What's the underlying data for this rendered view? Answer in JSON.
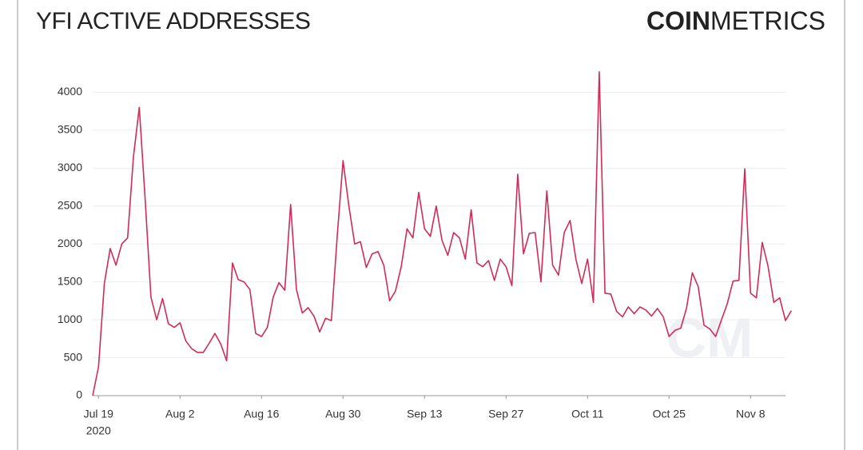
{
  "chart_data": {
    "type": "line",
    "title": "YFI ACTIVE ADDRESSES",
    "brand": [
      "COIN",
      "METRICS"
    ],
    "watermark": "CM",
    "x_start": "2020-07-18",
    "values": [
      0,
      380,
      1480,
      1940,
      1720,
      2000,
      2080,
      3150,
      3800,
      2600,
      1300,
      1000,
      1280,
      950,
      900,
      960,
      720,
      620,
      570,
      570,
      690,
      820,
      680,
      460,
      1750,
      1530,
      1500,
      1400,
      820,
      780,
      900,
      1300,
      1490,
      1390,
      2520,
      1400,
      1090,
      1160,
      1050,
      840,
      1020,
      990,
      2100,
      3100,
      2500,
      2000,
      2030,
      1690,
      1870,
      1900,
      1720,
      1250,
      1380,
      1700,
      2200,
      2080,
      2680,
      2200,
      2100,
      2500,
      2050,
      1850,
      2150,
      2080,
      1800,
      2450,
      1750,
      1700,
      1780,
      1520,
      1800,
      1700,
      1450,
      2920,
      1870,
      2140,
      2150,
      1500,
      2700,
      1720,
      1590,
      2150,
      2310,
      1800,
      1480,
      1800,
      1230,
      4270,
      1350,
      1340,
      1110,
      1040,
      1170,
      1080,
      1170,
      1130,
      1050,
      1150,
      1040,
      780,
      860,
      890,
      1150,
      1620,
      1440,
      930,
      880,
      780,
      1000,
      1210,
      1510,
      1520,
      2990,
      1350,
      1290,
      2020,
      1710,
      1230,
      1290,
      990,
      1120
    ],
    "color": "#d12b58",
    "xlim": [
      "2020-07-18",
      "2020-11-14"
    ],
    "xticks": [
      {
        "value": "2020-07-19",
        "label": "Jul 19"
      },
      {
        "value": "2020-08-02",
        "label": "Aug 2"
      },
      {
        "value": "2020-08-16",
        "label": "Aug 16"
      },
      {
        "value": "2020-08-30",
        "label": "Aug 30"
      },
      {
        "value": "2020-09-13",
        "label": "Sep 13"
      },
      {
        "value": "2020-09-27",
        "label": "Sep 27"
      },
      {
        "value": "2020-10-11",
        "label": "Oct 11"
      },
      {
        "value": "2020-10-25",
        "label": "Oct 25"
      },
      {
        "value": "2020-11-08",
        "label": "Nov 8"
      }
    ],
    "x_year_label": "2020",
    "ylim": [
      0,
      4300
    ],
    "yticks": [
      0,
      500,
      1000,
      1500,
      2000,
      2500,
      3000,
      3500,
      4000
    ],
    "grid": true
  }
}
